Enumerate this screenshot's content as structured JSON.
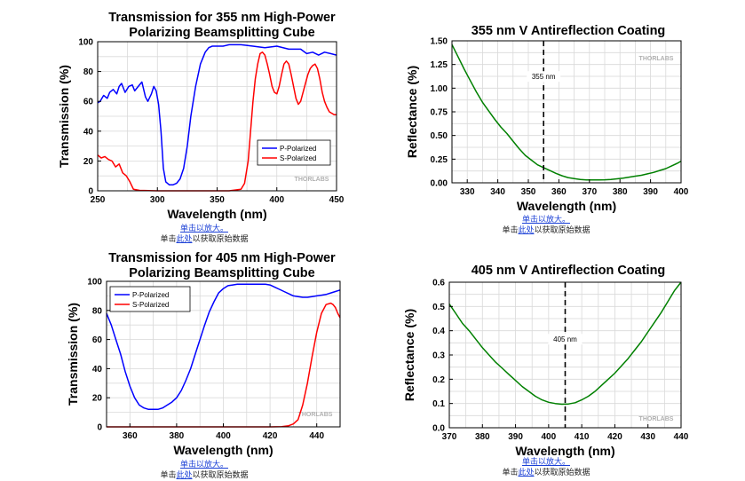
{
  "charts": [
    {
      "title_line1": "Transmission for 355 nm High-Power",
      "title_line2": "Polarizing Beamsplitting Cube",
      "caption_zoom": "单击以放大。",
      "caption_raw_prefix": "单击",
      "caption_raw_link": "此处",
      "caption_raw_suffix": "以获取原始数据",
      "watermark": "THORLABS",
      "chart_data": {
        "type": "line",
        "title": "Transmission for 355 nm High-Power Polarizing Beamsplitting Cube",
        "xlabel": "Wavelength (nm)",
        "ylabel": "Transmission (%)",
        "xlim": [
          250,
          450
        ],
        "ylim": [
          0,
          100
        ],
        "xticks": [
          250,
          300,
          350,
          400,
          450
        ],
        "yticks": [
          0,
          20,
          40,
          60,
          80,
          100
        ],
        "grid": true,
        "legend": "center-right",
        "series": [
          {
            "name": "P-Polarized",
            "color": "#0000ff",
            "x": [
              250,
              252,
              255,
              258,
              260,
              263,
              266,
              268,
              270,
              273,
              276,
              279,
              281,
              284,
              287,
              290,
              292,
              295,
              297,
              299,
              301,
              303,
              305,
              307,
              310,
              313,
              316,
              319,
              322,
              325,
              328,
              332,
              336,
              340,
              343,
              346,
              350,
              355,
              360,
              370,
              380,
              390,
              400,
              410,
              420,
              425,
              430,
              435,
              440,
              445,
              450
            ],
            "y": [
              59,
              60,
              64,
              62,
              66,
              68,
              65,
              70,
              72,
              66,
              70,
              71,
              67,
              70,
              73,
              63,
              60,
              65,
              70,
              67,
              58,
              40,
              15,
              6,
              4,
              4,
              5,
              8,
              15,
              30,
              50,
              70,
              85,
              93,
              96,
              97,
              97,
              97,
              98,
              98,
              97,
              96,
              97,
              95,
              95,
              92,
              93,
              91,
              93,
              92,
              91
            ]
          },
          {
            "name": "S-Polarized",
            "color": "#ff0000",
            "x": [
              250,
              253,
              256,
              259,
              262,
              265,
              268,
              271,
              274,
              277,
              280,
              285,
              300,
              320,
              340,
              360,
              370,
              373,
              376,
              378,
              380,
              382,
              384,
              386,
              388,
              390,
              392,
              394,
              396,
              398,
              400,
              402,
              404,
              406,
              408,
              410,
              412,
              414,
              416,
              418,
              420,
              422,
              424,
              426,
              428,
              430,
              432,
              434,
              436,
              438,
              440,
              442,
              444,
              446,
              448,
              450
            ],
            "y": [
              24,
              22,
              23,
              21,
              20,
              16,
              18,
              12,
              10,
              6,
              1,
              0.3,
              0,
              0,
              0,
              0,
              1,
              5,
              20,
              40,
              60,
              75,
              85,
              92,
              93,
              91,
              85,
              78,
              70,
              66,
              65,
              70,
              78,
              85,
              87,
              85,
              78,
              70,
              62,
              58,
              60,
              66,
              72,
              78,
              82,
              84,
              85,
              82,
              75,
              66,
              60,
              56,
              53,
              52,
              51,
              51
            ]
          }
        ]
      }
    },
    {
      "title_line1": "355 nm V Antireflection Coating",
      "title_line2": "",
      "caption_zoom": "单击以放大。",
      "caption_raw_prefix": "单击",
      "caption_raw_link": "此处",
      "caption_raw_suffix": "以获取原始数据",
      "watermark": "THORLABS",
      "chart_data": {
        "type": "line",
        "title": "355 nm V Antireflection Coating",
        "xlabel": "Wavelength (nm)",
        "ylabel": "Reflectance (%)",
        "xlim": [
          325,
          400
        ],
        "ylim": [
          0,
          1.5
        ],
        "xticks": [
          330,
          340,
          350,
          360,
          370,
          380,
          390,
          400
        ],
        "yticks": [
          0.0,
          0.25,
          0.5,
          0.75,
          1.0,
          1.25,
          1.5
        ],
        "ytick_decimals": 2,
        "grid": true,
        "annotation": {
          "text": "355 nm",
          "x": 355
        },
        "series": [
          {
            "name": "",
            "color": "#008000",
            "x": [
              325,
              327,
              329,
              331,
              333,
              335,
              337,
              339,
              341,
              343,
              345,
              347,
              349,
              351,
              353,
              355,
              357,
              359,
              361,
              363,
              365,
              367,
              369,
              371,
              373,
              375,
              377,
              379,
              381,
              383,
              385,
              387,
              389,
              391,
              393,
              395,
              397,
              399,
              400
            ],
            "y": [
              1.46,
              1.33,
              1.2,
              1.08,
              0.96,
              0.85,
              0.76,
              0.67,
              0.59,
              0.52,
              0.44,
              0.36,
              0.29,
              0.24,
              0.19,
              0.16,
              0.13,
              0.1,
              0.075,
              0.055,
              0.045,
              0.035,
              0.03,
              0.03,
              0.03,
              0.032,
              0.036,
              0.042,
              0.05,
              0.06,
              0.07,
              0.08,
              0.095,
              0.11,
              0.13,
              0.15,
              0.18,
              0.21,
              0.23
            ]
          }
        ]
      }
    },
    {
      "title_line1": "Transmission for 405 nm High-Power",
      "title_line2": "Polarizing Beamsplitting Cube",
      "caption_zoom": "单击以放大。",
      "caption_raw_prefix": "单击",
      "caption_raw_link": "此处",
      "caption_raw_suffix": "以获取原始数据",
      "watermark": "THORLABS",
      "chart_data": {
        "type": "line",
        "title": "Transmission for 405 nm High-Power Polarizing Beamsplitting Cube",
        "xlabel": "Wavelength (nm)",
        "ylabel": "Transmission (%)",
        "xlim": [
          350,
          450
        ],
        "ylim": [
          0,
          100
        ],
        "xticks": [
          360,
          380,
          400,
          420,
          440
        ],
        "yticks": [
          0,
          20,
          40,
          60,
          80,
          100
        ],
        "grid": true,
        "legend": "top-left",
        "series": [
          {
            "name": "P-Polarized",
            "color": "#0000ff",
            "x": [
              350,
              352,
              354,
              356,
              358,
              360,
              362,
              364,
              366,
              368,
              370,
              372,
              374,
              376,
              378,
              380,
              382,
              384,
              386,
              388,
              390,
              392,
              394,
              396,
              398,
              400,
              402,
              404,
              406,
              408,
              410,
              412,
              414,
              416,
              418,
              420,
              422,
              424,
              426,
              428,
              430,
              432,
              434,
              436,
              438,
              440,
              442,
              444,
              446,
              448,
              450
            ],
            "y": [
              78,
              70,
              60,
              50,
              38,
              28,
              20,
              15,
              13,
              12,
              12,
              12,
              13,
              15,
              17,
              20,
              25,
              32,
              40,
              50,
              60,
              70,
              79,
              86,
              92,
              95,
              97,
              97.5,
              98,
              98,
              98,
              98,
              98,
              98,
              98,
              97.5,
              96,
              94.5,
              93,
              91.5,
              90,
              89.5,
              89,
              89,
              89.5,
              90,
              90.5,
              91,
              92,
              93,
              94
            ]
          },
          {
            "name": "S-Polarized",
            "color": "#ff0000",
            "x": [
              350,
              360,
              380,
              400,
              420,
              425,
              428,
              430,
              432,
              434,
              436,
              438,
              440,
              442,
              444,
              446,
              447,
              448,
              449,
              450
            ],
            "y": [
              0,
              0,
              0,
              0,
              0,
              0.2,
              0.8,
              2,
              5,
              15,
              30,
              48,
              65,
              78,
              84,
              85,
              84,
              82,
              78,
              75
            ]
          }
        ]
      }
    },
    {
      "title_line1": "405 nm V Antireflection Coating",
      "title_line2": "",
      "caption_zoom": "单击以放大。",
      "caption_raw_prefix": "单击",
      "caption_raw_link": "此处",
      "caption_raw_suffix": "以获取原始数据",
      "watermark": "THORLABS",
      "chart_data": {
        "type": "line",
        "title": "405 nm V Antireflection Coating",
        "xlabel": "Wavelength (nm)",
        "ylabel": "Reflectance (%)",
        "xlim": [
          370,
          440
        ],
        "ylim": [
          0,
          0.6
        ],
        "xticks": [
          370,
          380,
          390,
          400,
          410,
          420,
          430,
          440
        ],
        "yticks": [
          0.0,
          0.1,
          0.2,
          0.3,
          0.4,
          0.5,
          0.6
        ],
        "ytick_decimals": 1,
        "grid": true,
        "annotation": {
          "text": "405 nm",
          "x": 405
        },
        "series": [
          {
            "name": "",
            "color": "#008000",
            "x": [
              370,
              372,
              374,
              376,
              378,
              380,
              382,
              384,
              386,
              388,
              390,
              392,
              394,
              396,
              398,
              400,
              402,
              404,
              406,
              408,
              410,
              412,
              414,
              416,
              418,
              420,
              422,
              424,
              426,
              428,
              430,
              432,
              434,
              436,
              438,
              440
            ],
            "y": [
              0.51,
              0.47,
              0.43,
              0.4,
              0.365,
              0.33,
              0.3,
              0.27,
              0.245,
              0.22,
              0.195,
              0.17,
              0.15,
              0.13,
              0.115,
              0.105,
              0.1,
              0.097,
              0.098,
              0.103,
              0.115,
              0.13,
              0.15,
              0.175,
              0.2,
              0.225,
              0.255,
              0.285,
              0.32,
              0.355,
              0.395,
              0.435,
              0.475,
              0.52,
              0.565,
              0.6
            ]
          }
        ]
      }
    }
  ]
}
